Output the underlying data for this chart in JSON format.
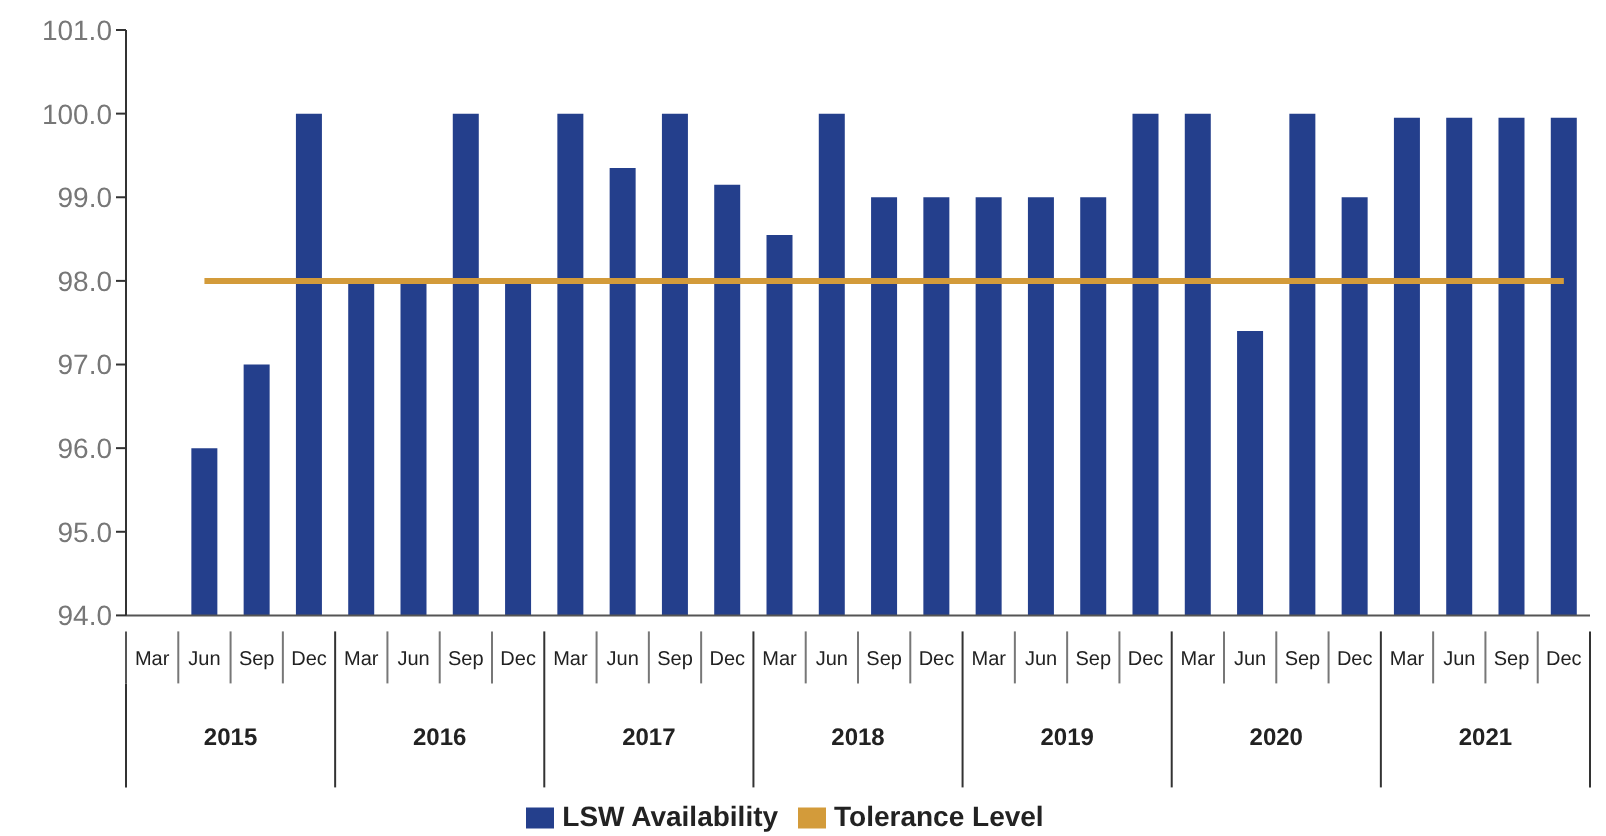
{
  "chart_data": {
    "type": "bar",
    "categories": [
      "Mar",
      "Jun",
      "Sep",
      "Dec",
      "Mar",
      "Jun",
      "Sep",
      "Dec",
      "Mar",
      "Jun",
      "Sep",
      "Dec",
      "Mar",
      "Jun",
      "Sep",
      "Dec",
      "Mar",
      "Jun",
      "Sep",
      "Dec",
      "Mar",
      "Jun",
      "Sep",
      "Dec",
      "Mar",
      "Jun",
      "Sep",
      "Dec"
    ],
    "annotations": [
      "2015",
      "2016",
      "2017",
      "2018",
      "2019",
      "2020",
      "2021"
    ],
    "series": [
      {
        "name": "LSW Availability",
        "color": "#243f8c",
        "values": [
          null,
          96,
          97,
          100,
          98,
          98,
          100,
          98,
          100,
          99.35,
          100,
          99.15,
          98.55,
          100,
          99,
          99,
          99,
          99,
          99,
          100,
          100,
          97.4,
          100,
          99,
          99.95,
          99.95,
          99.95,
          99.95
        ]
      },
      {
        "name": "Tolerance Level",
        "type": "line",
        "color": "#d39b3a",
        "values": [
          null,
          98,
          98,
          98,
          98,
          98,
          98,
          98,
          98,
          98,
          98,
          98,
          98,
          98,
          98,
          98,
          98,
          98,
          98,
          98,
          98,
          98,
          98,
          98,
          98,
          98,
          98,
          98
        ]
      }
    ],
    "ylim": [
      94,
      101
    ],
    "yticks": [
      {
        "value": 94,
        "label": "94.0"
      },
      {
        "value": 95,
        "label": "95.0"
      },
      {
        "value": 96,
        "label": "96.0"
      },
      {
        "value": 97,
        "label": "97.0"
      },
      {
        "value": 98,
        "label": "98.0"
      },
      {
        "value": 99,
        "label": "99.0"
      },
      {
        "value": 100,
        "label": "100.0"
      },
      {
        "value": 101,
        "label": "101.0"
      }
    ],
    "grid": false,
    "legend": "bottom"
  }
}
